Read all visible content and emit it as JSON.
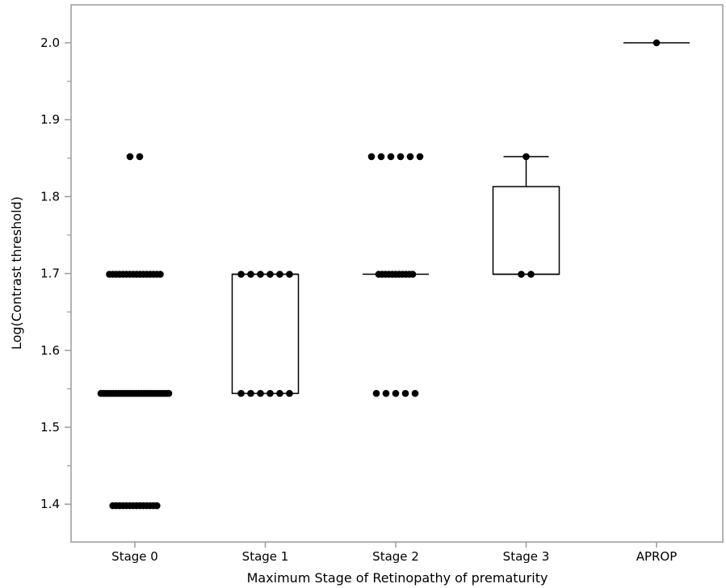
{
  "chart_data": {
    "type": "box",
    "xlabel": "Maximum Stage of Retinopathy of prematurity",
    "ylabel": "Log(Contrast threshold)",
    "ylim": [
      1.35,
      2.05
    ],
    "yticks": [
      1.4,
      1.5,
      1.6,
      1.7,
      1.8,
      1.9,
      2.0
    ],
    "ytick_labels": [
      "1.4",
      "1.5",
      "1.6",
      "1.7",
      "1.8",
      "1.9",
      "2.0"
    ],
    "categories": [
      "Stage 0",
      "Stage 1",
      "Stage 2",
      "Stage 3",
      "APROP"
    ],
    "groups": [
      {
        "name": "Stage 0",
        "box": {
          "q1": 1.544,
          "median": 1.544,
          "q3": 1.544,
          "whisker_low": 1.544,
          "whisker_high": 1.544
        },
        "points": [
          {
            "y": 1.852,
            "n": 2
          },
          {
            "y": 1.699,
            "n": 16
          },
          {
            "y": 1.544,
            "n": 28
          },
          {
            "y": 1.398,
            "n": 14
          }
        ]
      },
      {
        "name": "Stage 1",
        "box": {
          "q1": 1.544,
          "median": 1.699,
          "q3": 1.699,
          "whisker_low": 1.544,
          "whisker_high": 1.699
        },
        "points": [
          {
            "y": 1.699,
            "n": 6
          },
          {
            "y": 1.544,
            "n": 6
          }
        ]
      },
      {
        "name": "Stage 2",
        "box": {
          "q1": 1.699,
          "median": 1.699,
          "q3": 1.699,
          "whisker_low": 1.699,
          "whisker_high": 1.699
        },
        "points": [
          {
            "y": 1.852,
            "n": 6
          },
          {
            "y": 1.699,
            "n": 11
          },
          {
            "y": 1.544,
            "n": 5
          }
        ]
      },
      {
        "name": "Stage 3",
        "box": {
          "q1": 1.699,
          "median": 1.699,
          "q3": 1.813,
          "whisker_low": 1.699,
          "whisker_high": 1.852
        },
        "points": [
          {
            "y": 1.852,
            "n": 1
          },
          {
            "y": 1.699,
            "n": 2
          }
        ]
      },
      {
        "name": "APROP",
        "box": {
          "q1": 2.0,
          "median": 2.0,
          "q3": 2.0,
          "whisker_low": 2.0,
          "whisker_high": 2.0
        },
        "points": [
          {
            "y": 2.0,
            "n": 1
          }
        ]
      }
    ],
    "grid": false,
    "legend": "none"
  }
}
